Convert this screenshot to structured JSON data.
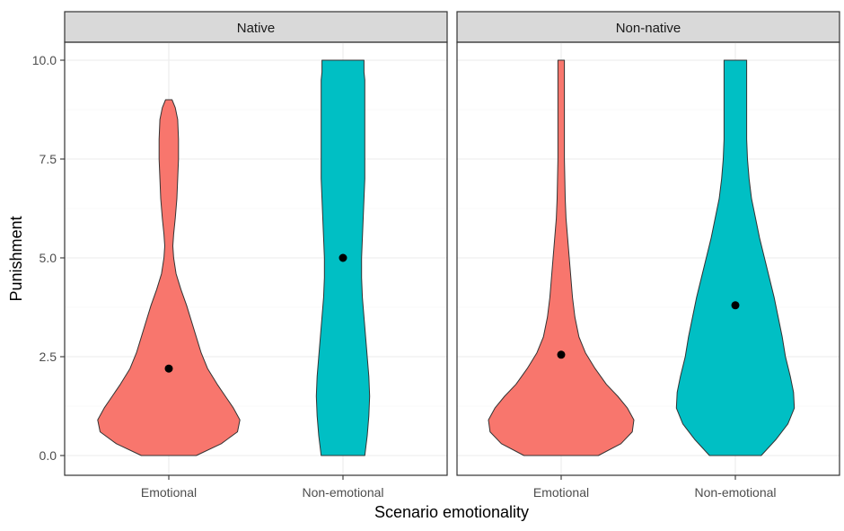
{
  "chart_data": {
    "type": "violin",
    "xlabel": "Scenario emotionality",
    "ylabel": "Punishment",
    "ylim": [
      0,
      10
    ],
    "yticks": [
      0,
      2.5,
      5,
      7.5,
      10
    ],
    "ytick_labels": [
      "0.0",
      "2.5",
      "5.0",
      "7.5",
      "10.0"
    ],
    "categories": [
      "Emotional",
      "Non-emotional"
    ],
    "colors": {
      "Emotional": "#F8766D",
      "Non-emotional": "#00BFC4"
    },
    "grid": true,
    "panels": [
      {
        "label": "Native",
        "violins": [
          {
            "category": "Emotional",
            "mean": 2.2,
            "profile": [
              [
                0,
                0.34
              ],
              [
                0.3,
                0.65
              ],
              [
                0.6,
                0.85
              ],
              [
                0.9,
                0.88
              ],
              [
                1.2,
                0.8
              ],
              [
                1.5,
                0.7
              ],
              [
                1.8,
                0.6
              ],
              [
                2.2,
                0.48
              ],
              [
                2.6,
                0.4
              ],
              [
                3.0,
                0.34
              ],
              [
                3.4,
                0.28
              ],
              [
                3.8,
                0.22
              ],
              [
                4.2,
                0.15
              ],
              [
                4.6,
                0.09
              ],
              [
                5.0,
                0.06
              ],
              [
                5.3,
                0.05
              ],
              [
                5.6,
                0.06
              ],
              [
                6.0,
                0.08
              ],
              [
                6.5,
                0.1
              ],
              [
                7.0,
                0.11
              ],
              [
                7.5,
                0.12
              ],
              [
                8.0,
                0.12
              ],
              [
                8.5,
                0.11
              ],
              [
                8.8,
                0.08
              ],
              [
                9.0,
                0.04
              ]
            ]
          },
          {
            "category": "Non-emotional",
            "mean": 5.0,
            "profile": [
              [
                0,
                0.27
              ],
              [
                0.5,
                0.3
              ],
              [
                1.0,
                0.32
              ],
              [
                1.5,
                0.33
              ],
              [
                2.0,
                0.32
              ],
              [
                2.5,
                0.3
              ],
              [
                3.0,
                0.28
              ],
              [
                3.5,
                0.26
              ],
              [
                4.0,
                0.24
              ],
              [
                4.5,
                0.23
              ],
              [
                5.0,
                0.23
              ],
              [
                5.5,
                0.24
              ],
              [
                6.0,
                0.25
              ],
              [
                6.5,
                0.26
              ],
              [
                7.0,
                0.27
              ],
              [
                7.5,
                0.27
              ],
              [
                8.0,
                0.27
              ],
              [
                8.5,
                0.27
              ],
              [
                9.0,
                0.27
              ],
              [
                9.5,
                0.27
              ],
              [
                9.7,
                0.26
              ],
              [
                10.0,
                0.26
              ]
            ]
          }
        ]
      },
      {
        "label": "Non-native",
        "violins": [
          {
            "category": "Emotional",
            "mean": 2.55,
            "profile": [
              [
                0,
                0.46
              ],
              [
                0.3,
                0.74
              ],
              [
                0.6,
                0.88
              ],
              [
                0.9,
                0.9
              ],
              [
                1.2,
                0.82
              ],
              [
                1.5,
                0.7
              ],
              [
                1.8,
                0.56
              ],
              [
                2.2,
                0.42
              ],
              [
                2.6,
                0.3
              ],
              [
                3.0,
                0.22
              ],
              [
                3.5,
                0.17
              ],
              [
                4.0,
                0.14
              ],
              [
                4.5,
                0.12
              ],
              [
                5.0,
                0.1
              ],
              [
                5.5,
                0.08
              ],
              [
                6.0,
                0.06
              ],
              [
                6.5,
                0.05
              ],
              [
                7.0,
                0.045
              ],
              [
                7.5,
                0.04
              ],
              [
                8.0,
                0.04
              ],
              [
                8.5,
                0.04
              ],
              [
                9.0,
                0.04
              ],
              [
                9.5,
                0.04
              ],
              [
                10.0,
                0.04
              ]
            ]
          },
          {
            "category": "Non-emotional",
            "mean": 3.8,
            "profile": [
              [
                0,
                0.32
              ],
              [
                0.4,
                0.5
              ],
              [
                0.8,
                0.65
              ],
              [
                1.2,
                0.73
              ],
              [
                1.6,
                0.72
              ],
              [
                2.0,
                0.68
              ],
              [
                2.5,
                0.62
              ],
              [
                3.0,
                0.58
              ],
              [
                3.5,
                0.53
              ],
              [
                4.0,
                0.48
              ],
              [
                4.5,
                0.42
              ],
              [
                5.0,
                0.36
              ],
              [
                5.5,
                0.3
              ],
              [
                6.0,
                0.25
              ],
              [
                6.5,
                0.2
              ],
              [
                7.0,
                0.17
              ],
              [
                7.5,
                0.15
              ],
              [
                8.0,
                0.14
              ],
              [
                8.5,
                0.14
              ],
              [
                9.0,
                0.14
              ],
              [
                9.5,
                0.14
              ],
              [
                10.0,
                0.14
              ]
            ]
          }
        ]
      }
    ]
  }
}
